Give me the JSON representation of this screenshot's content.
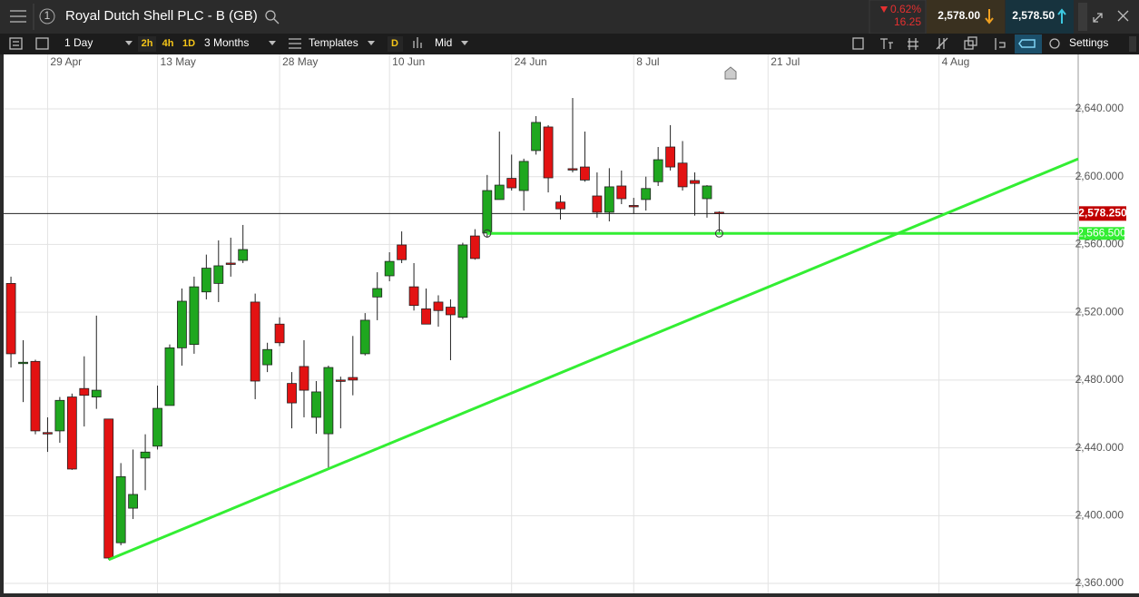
{
  "header": {
    "index": "1",
    "title": "Royal Dutch Shell PLC - B (GB)",
    "change_pct": "0.62%",
    "change_abs": "16.25",
    "sell": "2,578.00",
    "buy": "2,578.50"
  },
  "toolbar": {
    "interval": "1 Day",
    "quick_intervals": [
      "2h",
      "4h",
      "1D"
    ],
    "range": "3 Months",
    "templates": "Templates",
    "d": "D",
    "price_type": "Mid",
    "settings": "Settings"
  },
  "chart_data": {
    "type": "candlestick",
    "x": [
      0,
      1,
      2,
      3,
      4,
      5,
      6,
      7,
      8,
      9,
      10,
      11,
      12,
      13,
      14,
      15,
      16,
      17,
      18,
      19,
      20,
      21,
      22,
      23,
      24,
      25,
      26,
      27,
      28,
      29,
      30,
      31,
      32,
      33,
      34,
      35,
      36,
      37,
      38,
      39,
      40,
      41,
      42,
      43,
      44,
      45,
      46,
      47,
      48,
      49,
      50,
      51,
      52,
      53,
      54,
      55,
      56,
      57,
      58
    ],
    "open": [
      2537,
      2490,
      2491,
      2449,
      2450,
      2470,
      2475,
      2470,
      2457,
      2384,
      2404.4,
      2434,
      2441,
      2465,
      2499,
      2501,
      2532,
      2537,
      2549,
      2550.6,
      2526,
      2489,
      2513,
      2478,
      2488,
      2458,
      2448.3,
      2480,
      2481.5,
      2495.5,
      2529,
      2541.5,
      2559.7,
      2535,
      2522,
      2526,
      2523,
      2517,
      2565,
      2566.7,
      2586.5,
      2599,
      2591.8,
      2615.4,
      2629.3,
      2585,
      2604.7,
      2605.7,
      2588.6,
      2579,
      2594.5,
      2583,
      2586.5,
      2597,
      2617.5,
      2608,
      2597.7,
      2587,
      2579
    ],
    "high": [
      2541,
      2503.5,
      2492,
      2458,
      2470,
      2472,
      2494,
      2518,
      2457,
      2431,
      2439,
      2448,
      2476.7,
      2501,
      2534,
      2541,
      2554,
      2562.4,
      2564,
      2571.5,
      2531,
      2502,
      2517,
      2484.7,
      2503.5,
      2479.4,
      2488.5,
      2482,
      2506,
      2519.5,
      2543.6,
      2555.4,
      2567.7,
      2549,
      2534,
      2530,
      2527.6,
      2561,
      2569,
      2601,
      2626.6,
      2613,
      2610.6,
      2635.7,
      2630.4,
      2589,
      2646.4,
      2626.6,
      2602.5,
      2605,
      2603.6,
      2587.5,
      2600,
      2617.5,
      2630.4,
      2621,
      2602.5,
      2595,
      2579.5
    ],
    "low": [
      2487.4,
      2467,
      2448,
      2437.6,
      2443,
      2427,
      2452.6,
      2463,
      2374,
      2382.5,
      2398,
      2415,
      2439,
      2465,
      2488.5,
      2495.5,
      2527.6,
      2526,
      2541,
      2549,
      2468.7,
      2484.7,
      2500,
      2451.5,
      2458,
      2448.3,
      2428,
      2451.5,
      2471,
      2494.5,
      2515.3,
      2538.3,
      2549,
      2521,
      2513,
      2511.5,
      2491.7,
      2516,
      2551,
      2564,
      2586.5,
      2591.8,
      2580,
      2613,
      2590.7,
      2574.7,
      2602.5,
      2597,
      2575.8,
      2573.6,
      2583.8,
      2578,
      2580,
      2594.5,
      2603.6,
      2591.8,
      2577,
      2575.8,
      2567
    ],
    "close": [
      2495.5,
      2490.5,
      2450,
      2448.5,
      2468,
      2427.5,
      2471,
      2474,
      2375,
      2423,
      2412.5,
      2437.5,
      2463.3,
      2499,
      2526.5,
      2535,
      2546,
      2547.4,
      2548.5,
      2557,
      2479.4,
      2498,
      2502,
      2466.5,
      2474,
      2473,
      2487.4,
      2479.5,
      2480,
      2515.3,
      2534,
      2550,
      2551,
      2524,
      2513,
      2521,
      2518.5,
      2559.7,
      2551.7,
      2591.8,
      2595,
      2593.4,
      2609,
      2632,
      2599.3,
      2581,
      2604.2,
      2598,
      2579,
      2594,
      2587,
      2582.7,
      2593,
      2610,
      2605.7,
      2594,
      2596,
      2594.5,
      2578.25
    ],
    "up_color": "#1fa71f",
    "down_color": "#e31212",
    "xlim": [
      -0.6,
      87.4
    ],
    "xticks": [
      {
        "value": 3,
        "label": "29 Apr"
      },
      {
        "value": 12,
        "label": "13 May"
      },
      {
        "value": 22,
        "label": "28 May"
      },
      {
        "value": 31,
        "label": "10 Jun"
      },
      {
        "value": 41,
        "label": "24 Jun"
      },
      {
        "value": 51,
        "label": "8 Jul"
      },
      {
        "value": 62,
        "label": "21 Jul"
      },
      {
        "value": 76,
        "label": "4 Aug"
      }
    ],
    "ylim": [
      2353.6,
      2670.5
    ],
    "yticks": [
      {
        "value": 2360,
        "label": "2,360.000"
      },
      {
        "value": 2400,
        "label": "2,400.000"
      },
      {
        "value": 2440,
        "label": "2,440.000"
      },
      {
        "value": 2480,
        "label": "2,480.000"
      },
      {
        "value": 2520,
        "label": "2,520.000"
      },
      {
        "value": 2560,
        "label": "2,560.000"
      },
      {
        "value": 2600,
        "label": "2,600.000"
      },
      {
        "value": 2640,
        "label": "2,640.000"
      }
    ],
    "grid": true,
    "price_line": {
      "value": 2578.25,
      "label": "2,578.250",
      "color": "#c00000"
    },
    "horizontal_line": {
      "value": 2566.5,
      "label": "2,566.500",
      "color": "#33ee33",
      "from_x": 39
    },
    "trend_line": {
      "color": "#33ee33",
      "points": [
        [
          8,
          2374
        ],
        [
          87.4,
          2610.5
        ]
      ]
    }
  }
}
